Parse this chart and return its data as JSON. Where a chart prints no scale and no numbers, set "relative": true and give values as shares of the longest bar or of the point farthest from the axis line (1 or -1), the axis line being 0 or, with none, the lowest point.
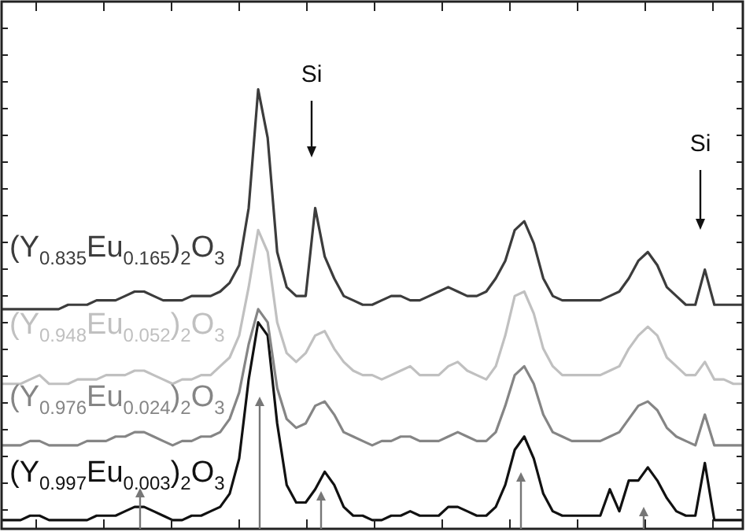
{
  "chart_data": {
    "type": "line",
    "relative": true,
    "grid": false,
    "legend": false,
    "marker": "none",
    "categories": [
      null,
      null,
      null,
      null,
      null,
      null,
      null,
      null,
      null,
      null,
      null,
      null,
      null,
      null,
      null,
      null,
      null,
      null,
      null,
      null,
      null,
      null,
      null,
      null,
      null,
      null,
      null,
      null,
      null,
      null,
      null,
      null,
      null,
      null,
      null,
      null,
      null,
      null,
      null,
      null,
      null,
      null,
      null,
      null,
      null,
      null,
      null,
      null,
      null,
      null,
      null,
      null,
      null,
      null,
      null,
      null,
      null,
      null,
      null,
      null,
      null,
      null,
      null,
      null,
      null,
      null,
      null,
      null,
      null,
      null,
      null,
      null,
      null,
      null,
      null,
      null,
      null,
      null,
      null
    ],
    "annotations": [
      "Si",
      "Si"
    ],
    "series": [
      {
        "name": "(Y$_{0.835}$Eu$_{0.165}$)$_{2}$O$_{3}$",
        "color": "#3c3c3c",
        "values": [
          0.5,
          0.5,
          0.5,
          0.5,
          0.5,
          0.5,
          0.5,
          0.51,
          0.51,
          0.51,
          0.52,
          0.52,
          0.52,
          0.53,
          0.54,
          0.54,
          0.53,
          0.52,
          0.52,
          0.52,
          0.53,
          0.53,
          0.53,
          0.54,
          0.56,
          0.6,
          0.73,
          1.0,
          0.89,
          0.63,
          0.55,
          0.53,
          0.53,
          0.73,
          0.62,
          0.57,
          0.53,
          0.52,
          0.51,
          0.51,
          0.52,
          0.53,
          0.53,
          0.52,
          0.52,
          0.53,
          0.54,
          0.55,
          0.54,
          0.53,
          0.53,
          0.54,
          0.57,
          0.61,
          0.68,
          0.7,
          0.65,
          0.57,
          0.53,
          0.52,
          0.52,
          0.52,
          0.52,
          0.52,
          0.53,
          0.54,
          0.57,
          0.61,
          0.63,
          0.6,
          0.55,
          0.53,
          0.51,
          0.51,
          0.59,
          0.51,
          0.51,
          0.51,
          0.51
        ]
      },
      {
        "name": "(Y$_{0.948}$Eu$_{0.052}$)$_{2}$O$_{3}$",
        "color": "#c0c0c0",
        "values": [
          0.33,
          0.33,
          0.33,
          0.34,
          0.35,
          0.33,
          0.33,
          0.33,
          0.34,
          0.34,
          0.34,
          0.35,
          0.35,
          0.35,
          0.36,
          0.36,
          0.35,
          0.34,
          0.33,
          0.34,
          0.34,
          0.35,
          0.35,
          0.37,
          0.39,
          0.44,
          0.55,
          0.68,
          0.63,
          0.47,
          0.4,
          0.38,
          0.4,
          0.44,
          0.45,
          0.41,
          0.38,
          0.36,
          0.35,
          0.35,
          0.34,
          0.35,
          0.36,
          0.37,
          0.35,
          0.35,
          0.35,
          0.37,
          0.38,
          0.36,
          0.35,
          0.34,
          0.37,
          0.44,
          0.53,
          0.54,
          0.49,
          0.41,
          0.37,
          0.35,
          0.35,
          0.35,
          0.35,
          0.35,
          0.36,
          0.37,
          0.41,
          0.44,
          0.46,
          0.44,
          0.39,
          0.37,
          0.35,
          0.35,
          0.38,
          0.34,
          0.34,
          0.33,
          0.33
        ]
      },
      {
        "name": "(Y$_{0.976}$Eu$_{0.024}$)$_{2}$O$_{3}$",
        "color": "#858585",
        "values": [
          0.19,
          0.19,
          0.19,
          0.2,
          0.2,
          0.19,
          0.19,
          0.19,
          0.19,
          0.2,
          0.2,
          0.2,
          0.21,
          0.21,
          0.22,
          0.22,
          0.21,
          0.2,
          0.19,
          0.2,
          0.2,
          0.21,
          0.21,
          0.22,
          0.25,
          0.31,
          0.42,
          0.5,
          0.47,
          0.32,
          0.25,
          0.23,
          0.24,
          0.28,
          0.29,
          0.26,
          0.22,
          0.21,
          0.2,
          0.19,
          0.2,
          0.2,
          0.21,
          0.21,
          0.2,
          0.2,
          0.2,
          0.21,
          0.22,
          0.21,
          0.2,
          0.2,
          0.22,
          0.28,
          0.35,
          0.37,
          0.33,
          0.26,
          0.22,
          0.21,
          0.2,
          0.2,
          0.2,
          0.2,
          0.21,
          0.22,
          0.25,
          0.28,
          0.29,
          0.27,
          0.23,
          0.21,
          0.2,
          0.19,
          0.26,
          0.19,
          0.19,
          0.19,
          0.19
        ]
      },
      {
        "name": "(Y$_{0.997}$Eu$_{0.003}$)$_{2}$O$_{3}$",
        "color": "#111111",
        "values": [
          0.02,
          0.02,
          0.02,
          0.03,
          0.03,
          0.02,
          0.02,
          0.02,
          0.02,
          0.02,
          0.03,
          0.03,
          0.03,
          0.04,
          0.05,
          0.05,
          0.04,
          0.03,
          0.02,
          0.02,
          0.03,
          0.03,
          0.04,
          0.05,
          0.08,
          0.16,
          0.34,
          0.47,
          0.44,
          0.24,
          0.1,
          0.06,
          0.06,
          0.09,
          0.13,
          0.1,
          0.05,
          0.03,
          0.03,
          0.02,
          0.02,
          0.03,
          0.03,
          0.04,
          0.03,
          0.03,
          0.03,
          0.05,
          0.05,
          0.04,
          0.03,
          0.03,
          0.05,
          0.1,
          0.18,
          0.21,
          0.16,
          0.08,
          0.04,
          0.03,
          0.03,
          0.03,
          0.03,
          0.03,
          0.09,
          0.04,
          0.11,
          0.11,
          0.14,
          0.11,
          0.07,
          0.04,
          0.03,
          0.03,
          0.15,
          0.02,
          0.02,
          0.02,
          0.02
        ]
      }
    ]
  }
}
